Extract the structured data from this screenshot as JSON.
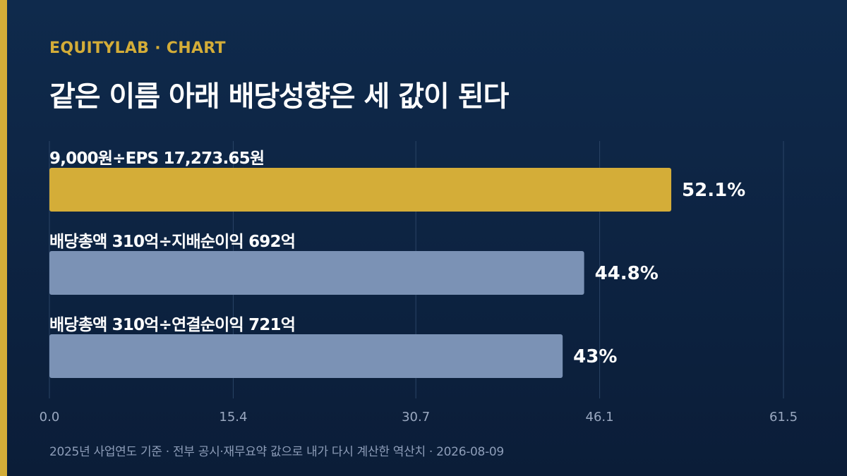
{
  "brand": "EQUITYLAB · CHART",
  "title": "같은 이름 아래 배당성향은 세 값이 된다",
  "footnote": "2025년 사업연도 기준 · 전부 공시·재무요약 값으로 내가 다시 계산한 역산치 · 2026-08-09",
  "colors": {
    "background": "#0f2a4c",
    "accent": "#d4ad38",
    "bar_secondary": "#7b92b5",
    "grid": "#2a4466"
  },
  "chart_data": {
    "type": "bar",
    "orientation": "horizontal",
    "categories": [
      "9,000원÷EPS 17,273.65원",
      "배당총액 310억÷지배순이익 692억",
      "배당총액 310억÷연결순이익 721억"
    ],
    "values": [
      52.1,
      44.8,
      43
    ],
    "value_labels": [
      "52.1%",
      "44.8%",
      "43%"
    ],
    "highlight_index": 0,
    "xlim": [
      0,
      61.5
    ],
    "xticks": [
      0,
      15.4,
      30.7,
      46.1,
      61.5
    ],
    "xtick_labels": [
      "0.0",
      "15.4",
      "30.7",
      "46.1",
      "61.5"
    ],
    "grid": true,
    "title": "",
    "xlabel": "",
    "ylabel": ""
  }
}
